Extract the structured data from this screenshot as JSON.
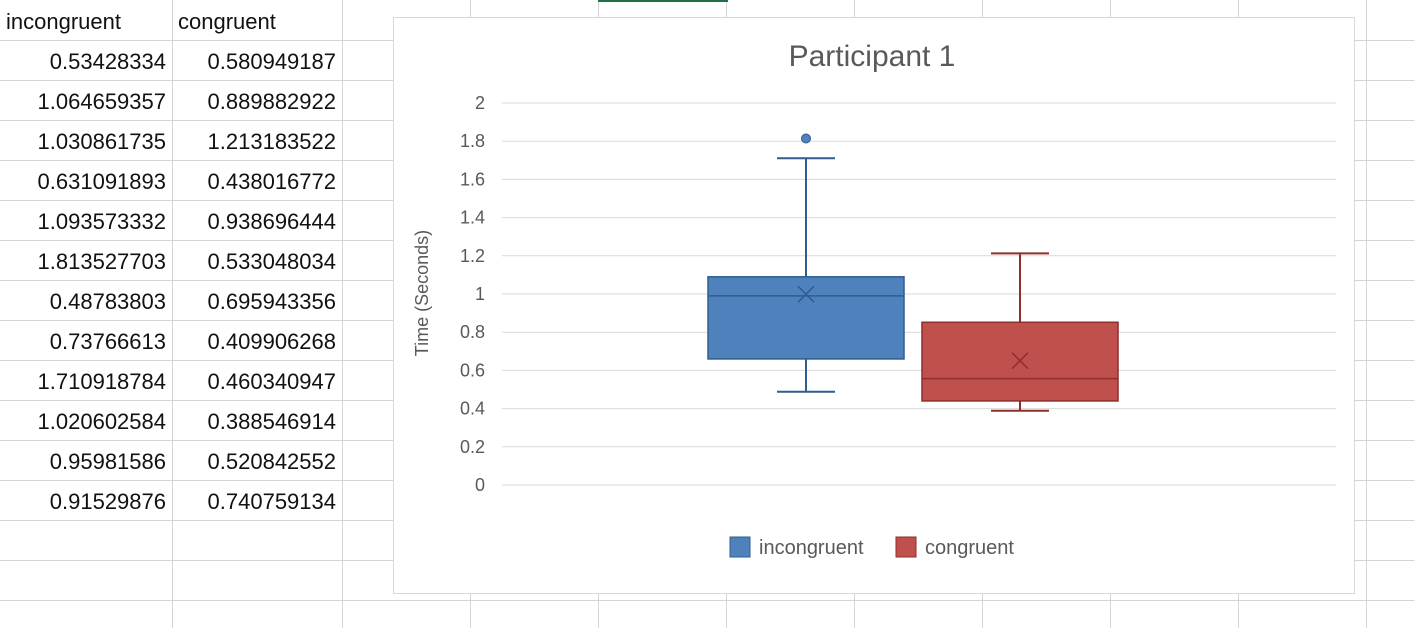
{
  "sheet": {
    "headers": [
      "incongruent",
      "congruent"
    ],
    "rows": [
      [
        "0.53428334",
        "0.580949187"
      ],
      [
        "1.064659357",
        "0.889882922"
      ],
      [
        "1.030861735",
        "1.213183522"
      ],
      [
        "0.631091893",
        "0.438016772"
      ],
      [
        "1.093573332",
        "0.938696444"
      ],
      [
        "1.813527703",
        "0.533048034"
      ],
      [
        "0.48783803",
        "0.695943356"
      ],
      [
        "0.73766613",
        "0.409906268"
      ],
      [
        "1.710918784",
        "0.460340947"
      ],
      [
        "1.020602584",
        "0.388546914"
      ],
      [
        "0.95981586",
        "0.520842552"
      ],
      [
        "0.91529876",
        "0.740759134"
      ]
    ]
  },
  "chart_data": {
    "type": "box",
    "title": "Participant 1",
    "ylabel": "Time (Seconds)",
    "xlabel": "",
    "ylim": [
      0,
      2
    ],
    "yticks": [
      "0",
      "0.2",
      "0.4",
      "0.6",
      "0.8",
      "1",
      "1.2",
      "1.4",
      "1.6",
      "1.8",
      "2"
    ],
    "grid": true,
    "legend_position": "bottom",
    "series": [
      {
        "name": "incongruent",
        "color": "#4f81bd",
        "stroke": "#2f5d8e",
        "min": 0.488,
        "q1": 0.66,
        "median": 0.99,
        "q3": 1.09,
        "max": 1.711,
        "mean": 0.999,
        "outliers": [
          1.814
        ]
      },
      {
        "name": "congruent",
        "color": "#c0504d",
        "stroke": "#8e2f2c",
        "min": 0.389,
        "q1": 0.44,
        "median": 0.557,
        "q3": 0.852,
        "max": 1.213,
        "mean": 0.651,
        "outliers": []
      }
    ]
  }
}
